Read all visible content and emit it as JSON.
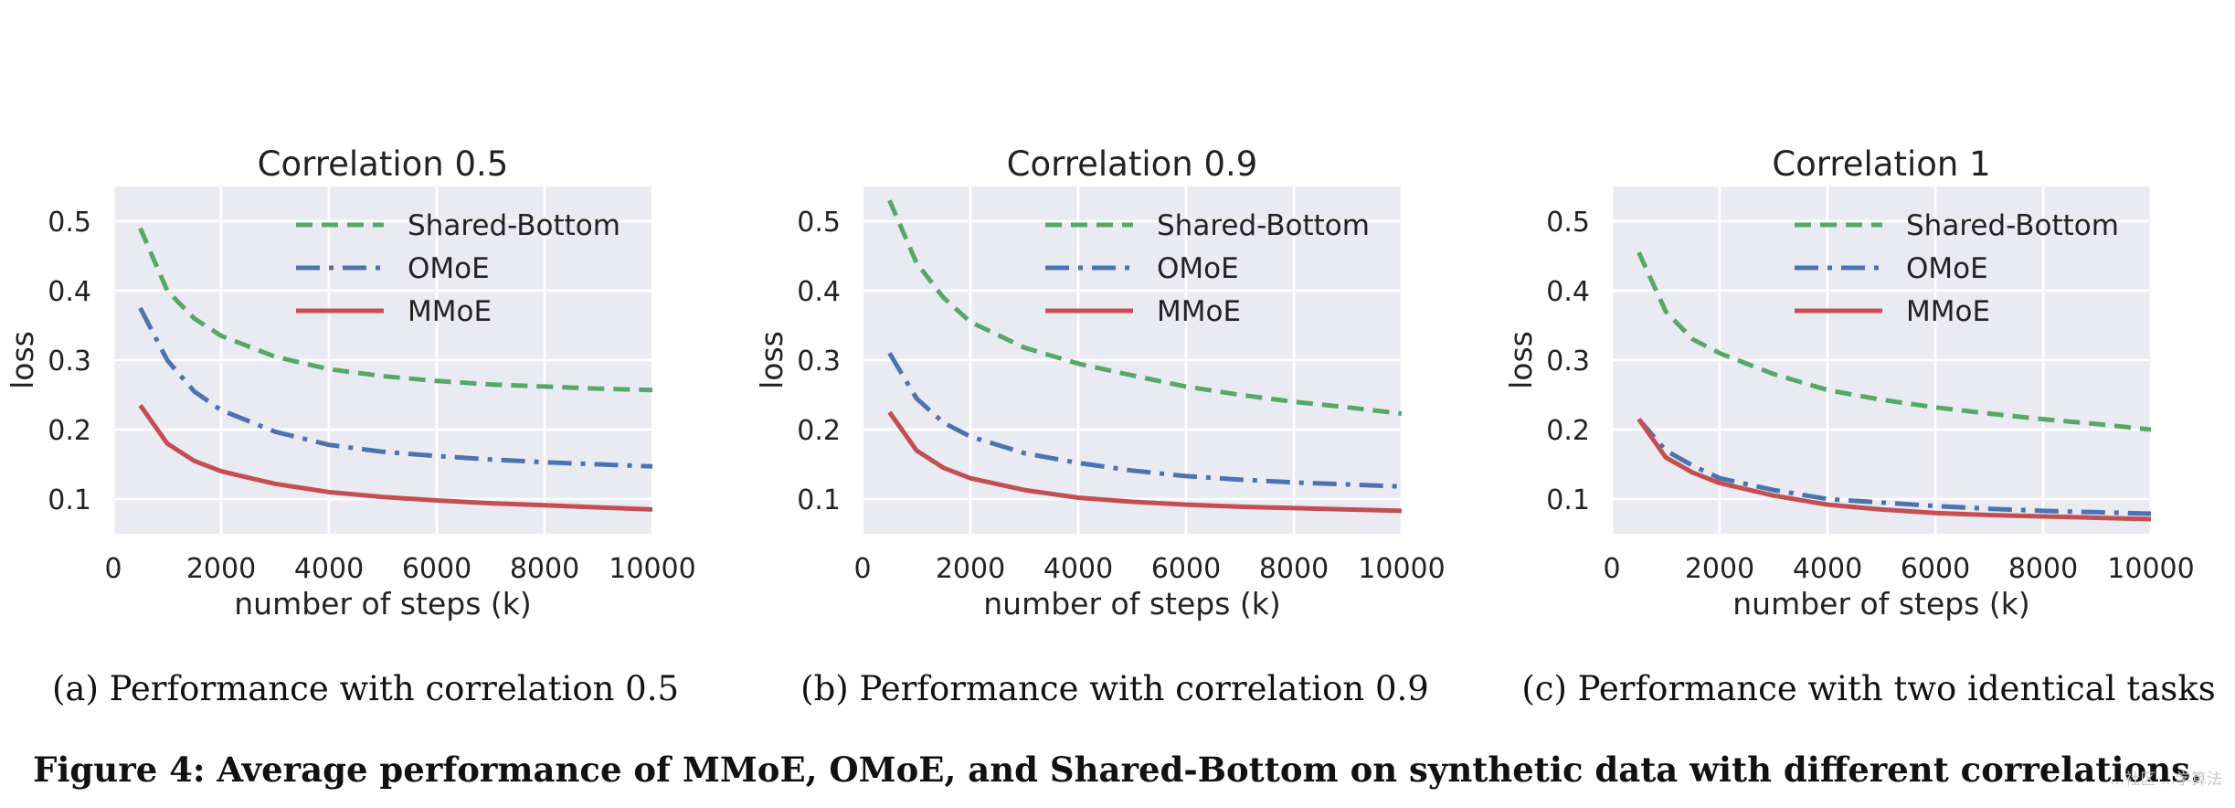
{
  "chart_data": [
    {
      "type": "line",
      "title": "Correlation 0.5",
      "xlabel": "number of steps (k)",
      "ylabel": "loss",
      "xlim": [
        0,
        10000
      ],
      "ylim": [
        0.05,
        0.55
      ],
      "xticks": [
        0,
        2000,
        4000,
        6000,
        8000,
        10000
      ],
      "yticks": [
        0.1,
        0.2,
        0.3,
        0.4,
        0.5
      ],
      "grid": true,
      "legend_position": "top-right",
      "subcaption": "(a) Performance with correlation 0.5",
      "x": [
        500,
        1000,
        1500,
        2000,
        3000,
        4000,
        5000,
        6000,
        7000,
        8000,
        9000,
        10000
      ],
      "series": [
        {
          "name": "Shared-Bottom",
          "style": "dashed",
          "color": "#55a868",
          "values": [
            0.49,
            0.4,
            0.36,
            0.335,
            0.305,
            0.287,
            0.277,
            0.27,
            0.265,
            0.262,
            0.259,
            0.257
          ]
        },
        {
          "name": "OMoE",
          "style": "dashdot",
          "color": "#4c72b0",
          "values": [
            0.375,
            0.3,
            0.255,
            0.228,
            0.197,
            0.178,
            0.168,
            0.162,
            0.157,
            0.153,
            0.15,
            0.147
          ]
        },
        {
          "name": "MMoE",
          "style": "solid",
          "color": "#c44e52",
          "values": [
            0.235,
            0.18,
            0.155,
            0.14,
            0.122,
            0.11,
            0.103,
            0.098,
            0.094,
            0.091,
            0.088,
            0.085
          ]
        }
      ]
    },
    {
      "type": "line",
      "title": "Correlation 0.9",
      "xlabel": "number of steps (k)",
      "ylabel": "loss",
      "xlim": [
        0,
        10000
      ],
      "ylim": [
        0.05,
        0.55
      ],
      "xticks": [
        0,
        2000,
        4000,
        6000,
        8000,
        10000
      ],
      "yticks": [
        0.1,
        0.2,
        0.3,
        0.4,
        0.5
      ],
      "grid": true,
      "legend_position": "top-right",
      "subcaption": "(b) Performance with correlation 0.9",
      "x": [
        500,
        1000,
        1500,
        2000,
        3000,
        4000,
        5000,
        6000,
        7000,
        8000,
        9000,
        10000
      ],
      "series": [
        {
          "name": "Shared-Bottom",
          "style": "dashed",
          "color": "#55a868",
          "values": [
            0.53,
            0.44,
            0.39,
            0.355,
            0.318,
            0.295,
            0.278,
            0.262,
            0.25,
            0.24,
            0.232,
            0.223
          ]
        },
        {
          "name": "OMoE",
          "style": "dashdot",
          "color": "#4c72b0",
          "values": [
            0.31,
            0.245,
            0.21,
            0.19,
            0.166,
            0.152,
            0.141,
            0.133,
            0.128,
            0.124,
            0.121,
            0.118
          ]
        },
        {
          "name": "MMoE",
          "style": "solid",
          "color": "#c44e52",
          "values": [
            0.225,
            0.17,
            0.145,
            0.13,
            0.113,
            0.102,
            0.096,
            0.092,
            0.089,
            0.087,
            0.085,
            0.083
          ]
        }
      ]
    },
    {
      "type": "line",
      "title": "Correlation 1",
      "xlabel": "number of steps (k)",
      "ylabel": "loss",
      "xlim": [
        0,
        10000
      ],
      "ylim": [
        0.05,
        0.55
      ],
      "xticks": [
        0,
        2000,
        4000,
        6000,
        8000,
        10000
      ],
      "yticks": [
        0.1,
        0.2,
        0.3,
        0.4,
        0.5
      ],
      "grid": true,
      "legend_position": "top-right",
      "subcaption": "(c) Performance with two identical tasks",
      "x": [
        500,
        1000,
        1500,
        2000,
        3000,
        4000,
        5000,
        6000,
        7000,
        8000,
        9000,
        10000
      ],
      "series": [
        {
          "name": "Shared-Bottom",
          "style": "dashed",
          "color": "#55a868",
          "values": [
            0.455,
            0.37,
            0.33,
            0.31,
            0.28,
            0.257,
            0.243,
            0.232,
            0.223,
            0.215,
            0.208,
            0.2
          ]
        },
        {
          "name": "OMoE",
          "style": "dashdot",
          "color": "#4c72b0",
          "values": [
            0.215,
            0.17,
            0.148,
            0.13,
            0.113,
            0.1,
            0.095,
            0.09,
            0.086,
            0.083,
            0.081,
            0.079
          ]
        },
        {
          "name": "MMoE",
          "style": "solid",
          "color": "#c44e52",
          "values": [
            0.215,
            0.16,
            0.138,
            0.123,
            0.105,
            0.092,
            0.085,
            0.08,
            0.077,
            0.075,
            0.073,
            0.071
          ]
        }
      ]
    }
  ],
  "caption": "Figure 4: Average performance of MMoE, OMoE, and Shared-Bottom on synthetic data with different correlations.",
  "watermark": "...社区 ...学算法",
  "style": {
    "plot_bg": "#eaeaf2",
    "grid": "#ffffff",
    "text": "#222222"
  }
}
